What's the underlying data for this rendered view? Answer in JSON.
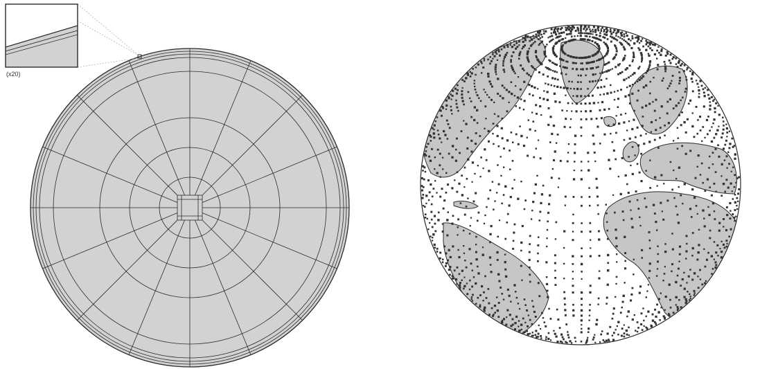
{
  "left_panel": {
    "zoom_label": "(x20)"
  },
  "palette": {
    "fill_gray": "#d2d2d2",
    "line": "#2a2a2a",
    "point": "#333333",
    "background": "#ffffff"
  },
  "right_panel": {
    "description_icon": "globe-icon"
  }
}
